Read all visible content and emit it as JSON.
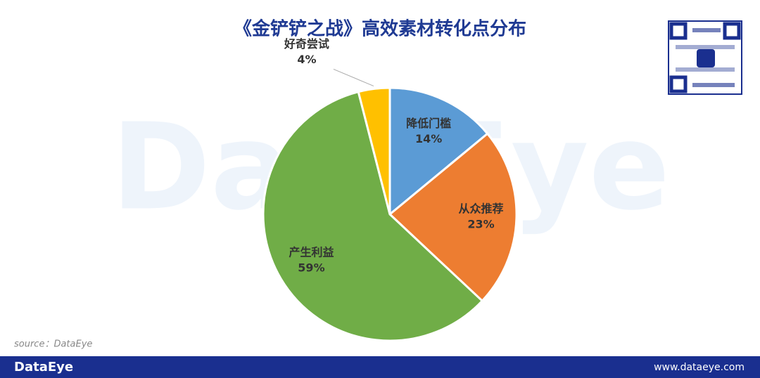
{
  "chart_data": {
    "type": "pie",
    "title": "《金铲铲之战》高效素材转化点分布",
    "categories": [
      "降低门槛",
      "从众推荐",
      "产生利益",
      "好奇尝试"
    ],
    "values": [
      14,
      23,
      59,
      4
    ],
    "value_labels": [
      "14%",
      "23%",
      "59%",
      "4%"
    ],
    "colors": [
      "#5b9bd5",
      "#ed7d31",
      "#70ad47",
      "#ffc000"
    ],
    "source": "source：DataEye",
    "watermark": "DataEye",
    "footer_brand": "DataEye",
    "footer_url": "www.dataeye.com"
  }
}
